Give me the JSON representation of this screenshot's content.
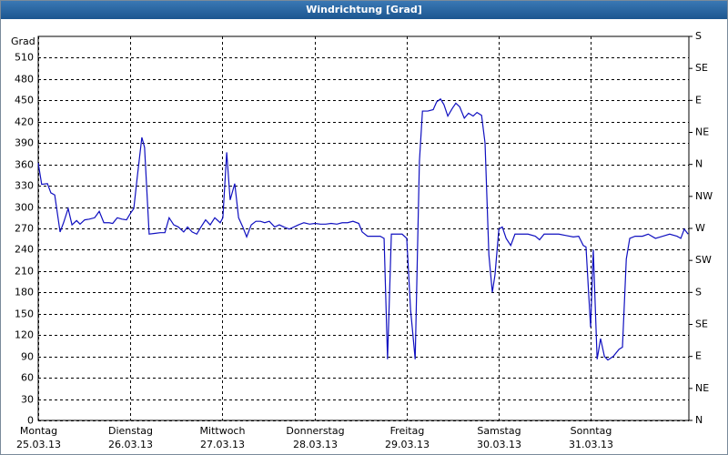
{
  "chart_data": {
    "type": "line",
    "title": "Windrichtung [Grad]",
    "ylabel": "Grad",
    "color": "#1010c0",
    "grid": true,
    "xlim": [
      0,
      169.5
    ],
    "xticks": [
      {
        "value": 0,
        "label": "Montag"
      },
      {
        "value": 24,
        "label": "Dienstag"
      },
      {
        "value": 48,
        "label": "Mittwoch"
      },
      {
        "value": 72,
        "label": "Donnerstag"
      },
      {
        "value": 96,
        "label": "Freitag"
      },
      {
        "value": 120,
        "label": "Samstag"
      },
      {
        "value": 144,
        "label": "Sonntag"
      }
    ],
    "xtick_dates": [
      "25.03.13",
      "26.03.13",
      "27.03.13",
      "28.03.13",
      "29.03.13",
      "30.03.13",
      "31.03.13"
    ],
    "ylim": [
      0,
      540
    ],
    "yticks": [
      0,
      30,
      60,
      90,
      120,
      150,
      180,
      210,
      240,
      270,
      300,
      330,
      360,
      390,
      420,
      450,
      480,
      510
    ],
    "y2lim": [
      0,
      540
    ],
    "y2ticks": [
      {
        "value": 0,
        "label": "N"
      },
      {
        "value": 45,
        "label": "NE"
      },
      {
        "value": 90,
        "label": "E"
      },
      {
        "value": 135,
        "label": "SE"
      },
      {
        "value": 180,
        "label": "S"
      },
      {
        "value": 225,
        "label": "SW"
      },
      {
        "value": 270,
        "label": "W"
      },
      {
        "value": 315,
        "label": "NW"
      },
      {
        "value": 360,
        "label": "N"
      },
      {
        "value": 405,
        "label": "NE"
      },
      {
        "value": 450,
        "label": "E"
      },
      {
        "value": 495,
        "label": "SE"
      },
      {
        "value": 540,
        "label": "S"
      }
    ],
    "x": [
      0,
      0.9,
      2.4,
      3.3,
      4.3,
      5.7,
      6.6,
      7.8,
      8.8,
      10.0,
      10.9,
      12.1,
      13.3,
      14.7,
      15.9,
      17.1,
      18.5,
      19.4,
      20.6,
      21.8,
      23.0,
      24.0,
      24.9,
      25.8,
      27.0,
      27.7,
      28.9,
      30.3,
      31.8,
      33.0,
      34.1,
      35.3,
      36.5,
      37.9,
      38.9,
      40.1,
      41.3,
      42.4,
      43.6,
      44.8,
      46.0,
      47.4,
      48.1,
      49.1,
      50.0,
      51.2,
      52.2,
      53.3,
      54.3,
      55.5,
      56.7,
      57.9,
      59.0,
      60.2,
      61.6,
      62.8,
      64.0,
      65.4,
      66.6,
      67.8,
      69.2,
      70.7,
      72.1,
      73.5,
      74.9,
      76.3,
      77.8,
      79.2,
      80.6,
      82.0,
      83.5,
      84.4,
      85.8,
      87.7,
      89.1,
      90.1,
      91.0,
      92.0,
      93.4,
      94.8,
      96.0,
      97.0,
      98.2,
      99.3,
      100.1,
      101.5,
      102.9,
      103.8,
      104.8,
      105.7,
      106.7,
      107.9,
      108.8,
      109.8,
      111.0,
      112.1,
      113.3,
      114.3,
      115.5,
      116.4,
      117.4,
      118.3,
      119.0,
      120.0,
      120.9,
      121.9,
      123.1,
      124.2,
      125.7,
      127.6,
      129.5,
      130.6,
      131.8,
      133.7,
      135.6,
      137.5,
      139.4,
      140.8,
      142.0,
      142.7,
      143.9,
      144.6,
      145.6,
      146.5,
      147.5,
      148.4,
      149.8,
      151.3,
      152.2,
      153.2,
      154.1,
      155.5,
      157.4,
      158.9,
      160.8,
      162.7,
      164.5,
      166.4,
      167.4,
      168.3,
      169.3
    ],
    "values": [
      362,
      332,
      333,
      320,
      317,
      265,
      278,
      298,
      275,
      281,
      276,
      282,
      283,
      285,
      294,
      278,
      278,
      277,
      285,
      283,
      282,
      291,
      298,
      342,
      398,
      384,
      262,
      263,
      264,
      264,
      285,
      275,
      272,
      265,
      272,
      265,
      262,
      272,
      282,
      275,
      285,
      278,
      285,
      377,
      310,
      333,
      285,
      272,
      258,
      275,
      280,
      280,
      278,
      280,
      272,
      275,
      272,
      269,
      272,
      275,
      278,
      276,
      277,
      276,
      276,
      277,
      276,
      278,
      278,
      280,
      277,
      265,
      259,
      259,
      259,
      256,
      86,
      262,
      262,
      262,
      256,
      156,
      86,
      364,
      435,
      435,
      437,
      448,
      452,
      444,
      428,
      439,
      446,
      441,
      425,
      432,
      428,
      433,
      429,
      390,
      233,
      180,
      205,
      269,
      272,
      256,
      246,
      262,
      262,
      262,
      259,
      254,
      262,
      262,
      262,
      260,
      258,
      259,
      246,
      244,
      131,
      240,
      86,
      115,
      90,
      85,
      90,
      100,
      103,
      227,
      256,
      259,
      259,
      262,
      256,
      259,
      262,
      259,
      256,
      269,
      262
    ]
  }
}
